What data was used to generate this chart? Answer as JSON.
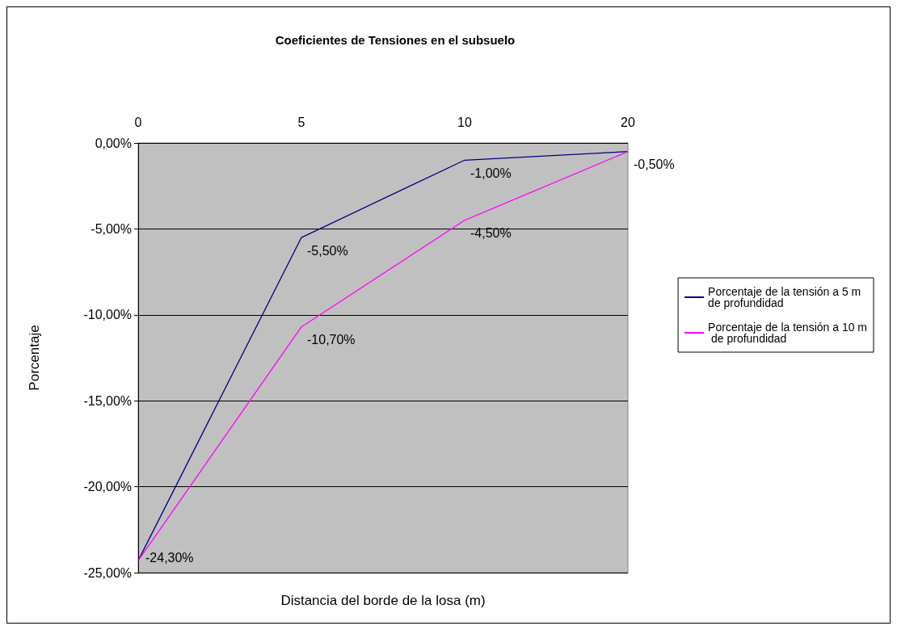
{
  "chart_data": {
    "type": "line",
    "title": "Coeficientes de Tensiones en el subsuelo",
    "xlabel": "Distancia del borde de la losa (m)",
    "ylabel": "Porcentaje",
    "categories": [
      "0",
      "5",
      "10",
      "20"
    ],
    "series": [
      {
        "name": "Porcentaje de la tensión a 5 m de profundidad",
        "color": "#000080",
        "values": [
          -24.3,
          -5.5,
          -1.0,
          -0.5
        ],
        "value_labels": [
          "-24,30%",
          "-5,50%",
          "-1,00%",
          "-0,50%"
        ]
      },
      {
        "name": "Porcentaje de la tensión a 10 m de profundidad",
        "color": "#ff00ff",
        "values": [
          -24.3,
          -10.7,
          -4.5,
          -0.5
        ],
        "value_labels": [
          null,
          "-10,70%",
          "-4,50%",
          null
        ]
      }
    ],
    "ylim": [
      -25,
      0
    ],
    "yticks": [
      {
        "value": -25,
        "label": "-25,00%"
      },
      {
        "value": -20,
        "label": "-20,00%"
      },
      {
        "value": -15,
        "label": "-15,00%"
      },
      {
        "value": -10,
        "label": "-10,00%"
      },
      {
        "value": -5,
        "label": "-5,00%"
      },
      {
        "value": 0,
        "label": "0,00%"
      }
    ],
    "grid": "y",
    "legend": "right",
    "marker": "none",
    "line_style": "solid"
  }
}
